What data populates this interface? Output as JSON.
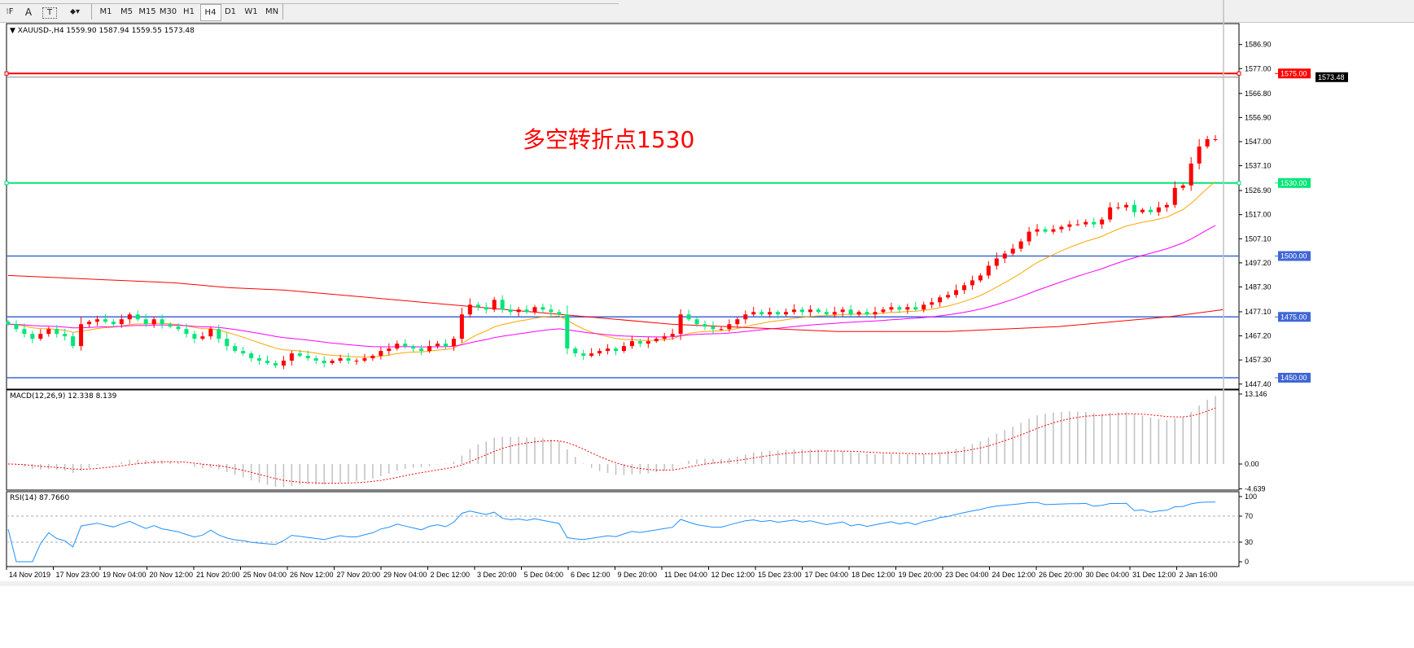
{
  "toolbar": {
    "tools": [
      {
        "name": "grid-fibo-icon",
        "label": "⁝F"
      },
      {
        "name": "text-icon",
        "label": "A"
      },
      {
        "name": "text-label-icon",
        "label": "T"
      },
      {
        "name": "arrows-icon",
        "label": "⬥▾"
      }
    ],
    "timeframes": [
      "M1",
      "M5",
      "M15",
      "M30",
      "H1",
      "H4",
      "D1",
      "W1",
      "MN"
    ],
    "active_timeframe": "H4"
  },
  "chart_header": {
    "symbol": "XAUUSD-,H4",
    "ohlc": "1559.90 1587.94 1559.55 1573.48"
  },
  "annotation": "多空转折点1530",
  "colors": {
    "bull": "#ff0000",
    "bear": "#00e676",
    "ma_fast": "#ffa500",
    "ma_mid": "#ff00ff",
    "ma_slow": "#ff0000",
    "level_blue": "#3f66d6",
    "level_green": "#00e676",
    "level_red": "#ff0000",
    "macd_hist": "#c0c0c0",
    "macd_signal": "#ff0000",
    "rsi": "#1e90ff"
  },
  "chart_data": [
    {
      "type": "candlestick",
      "symbol": "XAUUSD-",
      "timeframe": "H4",
      "ylim": [
        1447.4,
        1590
      ],
      "y_ticks": [
        "1586.90",
        "1577.00",
        "1566.80",
        "1556.90",
        "1547.00",
        "1537.10",
        "1526.90",
        "1517.00",
        "1507.10",
        "1497.20",
        "1487.30",
        "1477.10",
        "1467.20",
        "1457.30",
        "1447.40"
      ],
      "x_ticks": [
        "14 Nov 2019",
        "17 Nov 23:00",
        "19 Nov 04:00",
        "20 Nov 12:00",
        "21 Nov 20:00",
        "25 Nov 04:00",
        "26 Nov 12:00",
        "27 Nov 20:00",
        "29 Nov 04:00",
        "2 Dec 12:00",
        "3 Dec 20:00",
        "5 Dec 04:00",
        "6 Dec 12:00",
        "9 Dec 20:00",
        "11 Dec 04:00",
        "12 Dec 12:00",
        "15 Dec 23:00",
        "17 Dec 04:00",
        "18 Dec 12:00",
        "19 Dec 20:00",
        "23 Dec 04:00",
        "24 Dec 12:00",
        "26 Dec 20:00",
        "30 Dec 04:00",
        "31 Dec 12:00",
        "2 Jan 16:00"
      ],
      "closes": [
        1472,
        1470,
        1468,
        1466,
        1468,
        1470,
        1468,
        1467,
        1463,
        1472,
        1473,
        1474,
        1473,
        1472,
        1474,
        1476,
        1474,
        1472,
        1474,
        1472,
        1471,
        1470,
        1468,
        1466,
        1467,
        1470,
        1466,
        1463,
        1461,
        1460,
        1458,
        1457,
        1456,
        1455,
        1457,
        1460,
        1459,
        1458,
        1457,
        1456,
        1457,
        1458,
        1457,
        1457,
        1458,
        1459,
        1461,
        1462,
        1464,
        1463,
        1462,
        1461,
        1463,
        1464,
        1463,
        1466,
        1476,
        1480,
        1479,
        1478,
        1482,
        1478,
        1477,
        1478,
        1477,
        1479,
        1478,
        1477,
        1476,
        1462,
        1460,
        1459,
        1460,
        1461,
        1462,
        1461,
        1463,
        1465,
        1464,
        1465,
        1466,
        1467,
        1468,
        1476,
        1474,
        1472,
        1471,
        1470,
        1470,
        1472,
        1474,
        1476,
        1477,
        1476,
        1477,
        1476,
        1477,
        1478,
        1477,
        1478,
        1477,
        1476,
        1477,
        1478,
        1476,
        1477,
        1476,
        1477,
        1478,
        1479,
        1478,
        1479,
        1478,
        1480,
        1481,
        1483,
        1484,
        1486,
        1488,
        1490,
        1492,
        1496,
        1499,
        1501,
        1503,
        1506,
        1510,
        1511,
        1510,
        1511,
        1512,
        1513,
        1513,
        1514,
        1513,
        1515,
        1520,
        1520,
        1521,
        1518,
        1519,
        1518,
        1520,
        1521,
        1528,
        1529,
        1538,
        1545,
        1548,
        1548
      ],
      "last_candle": {
        "open": 1559.9,
        "high": 1587.94,
        "low": 1559.55,
        "close": 1573.48
      },
      "ma_slow": [
        1492,
        1491,
        1490,
        1489,
        1487,
        1486,
        1484,
        1482,
        1480,
        1478,
        1476,
        1474,
        1472,
        1471,
        1470,
        1469,
        1469,
        1469,
        1470,
        1471,
        1473,
        1475,
        1478
      ],
      "levels": [
        {
          "price": 1575.0,
          "label": "1575.00",
          "color": "red"
        },
        {
          "price": 1530.0,
          "label": "1530.00",
          "color": "green"
        },
        {
          "price": 1500.0,
          "label": "1500.00",
          "color": "blue"
        },
        {
          "price": 1475.0,
          "label": "1475.00",
          "color": "blue"
        },
        {
          "price": 1450.0,
          "label": "1450.00",
          "color": "blue"
        }
      ],
      "current_price_label": "1573.48"
    },
    {
      "type": "bar",
      "title": "MACD(12,26,9) 12.338 8.139",
      "ylim": [
        -4.639,
        13.146
      ],
      "y_ticks": [
        "13.146",
        "0.00",
        "-4.639"
      ]
    },
    {
      "type": "line",
      "title": "RSI(14) 87.7660",
      "ylim": [
        0,
        100
      ],
      "y_ticks": [
        "100",
        "70",
        "30",
        "0"
      ],
      "levels": [
        70,
        30
      ]
    }
  ]
}
